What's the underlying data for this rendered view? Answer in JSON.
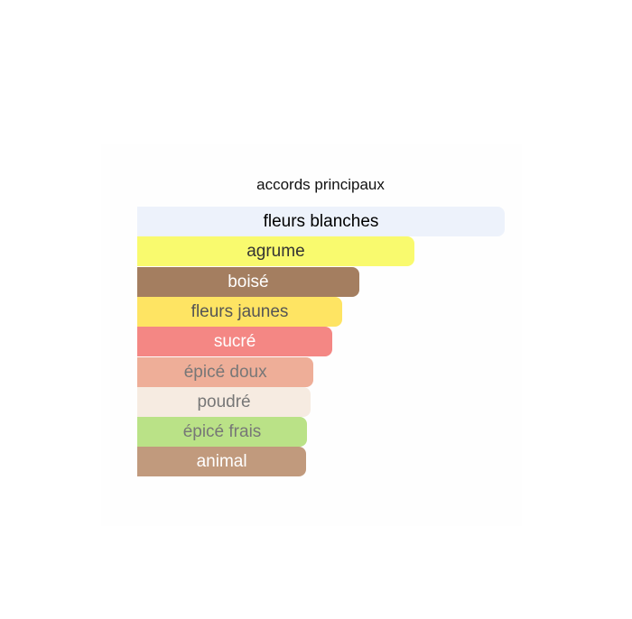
{
  "chart_data": {
    "type": "bar",
    "orientation": "horizontal",
    "title": "accords principaux",
    "categories": [
      "fleurs blanches",
      "agrume",
      "boisé",
      "fleurs jaunes",
      "sucré",
      "épicé doux",
      "poudré",
      "épicé frais",
      "animal"
    ],
    "values": [
      100,
      75.4,
      60.4,
      55.8,
      53.1,
      48.0,
      47.2,
      46.2,
      46.0
    ],
    "colors": [
      "#edf2fb",
      "#f9fa6e",
      "#a47e60",
      "#fee463",
      "#f48784",
      "#eeae98",
      "#f6ebe1",
      "#bae287",
      "#c19a7d"
    ],
    "label_colors": [
      "#000000",
      "#333333",
      "#ffffff",
      "#555555",
      "#ffffff",
      "#777777",
      "#777777",
      "#777777",
      "#ffffff"
    ],
    "xlim": [
      0,
      100
    ],
    "grid": false,
    "legend": "none"
  }
}
